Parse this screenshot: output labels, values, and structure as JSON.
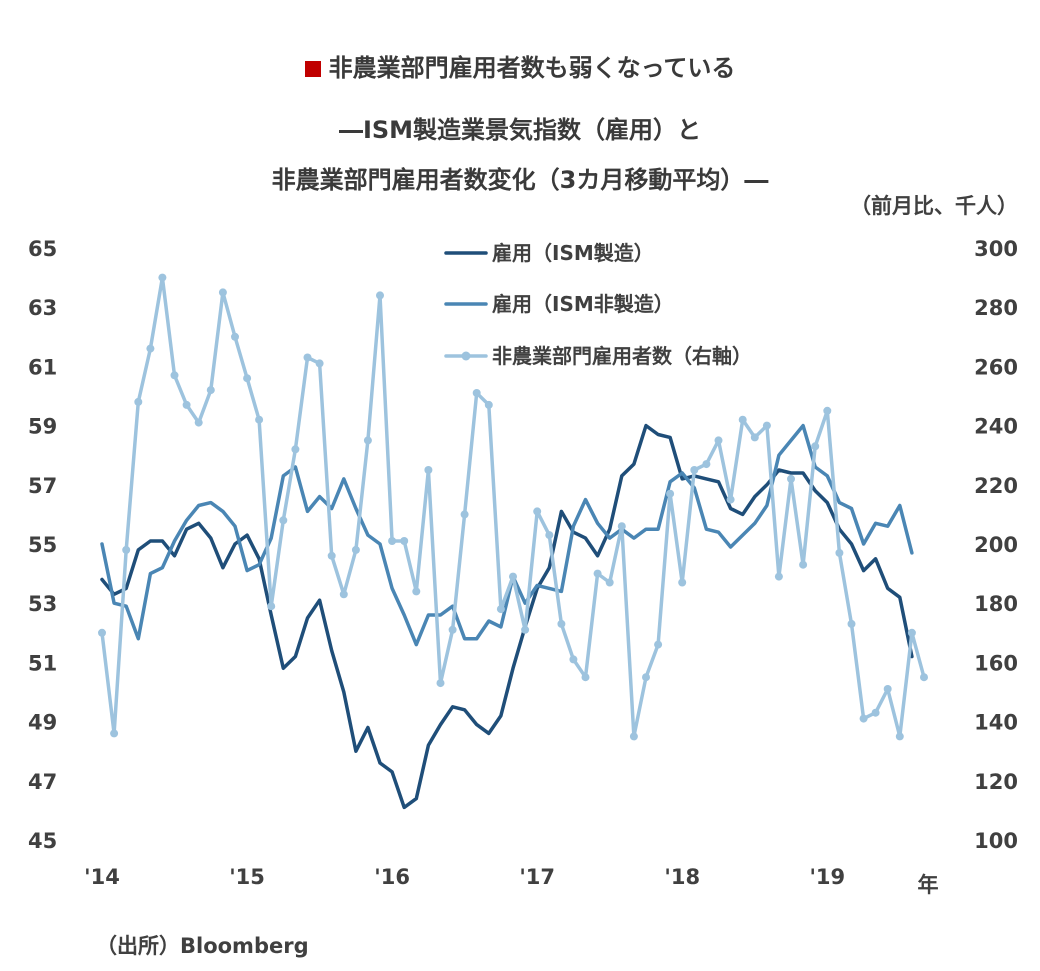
{
  "title": {
    "line1": "非農業部門雇用者数も弱くなっている",
    "line2": "―ISM製造業景気指数（雇用）と",
    "line3": "非農業部門雇用者数変化（3カ月移動平均）―"
  },
  "unit_right": "（前月比、千人）",
  "source": "（出所）Bloomberg",
  "colors": {
    "title_marker": "#c00000",
    "ism_manufacturing": "#1f4e79",
    "ism_nonmanufacturing": "#4a86b4",
    "nonfarm_payrolls": "#9dc3de"
  },
  "chart_data": {
    "type": "line",
    "x_unit": "年",
    "x_tick_labels": [
      "'14",
      "'15",
      "'16",
      "'17",
      "'18",
      "'19"
    ],
    "x_range": [
      "2014-01",
      "2019-09"
    ],
    "y_left": {
      "range": [
        45,
        65
      ],
      "ticks": [
        45,
        47,
        49,
        51,
        53,
        55,
        57,
        59,
        61,
        63,
        65
      ]
    },
    "y_right": {
      "range": [
        100,
        300
      ],
      "ticks": [
        100,
        120,
        140,
        160,
        180,
        200,
        220,
        240,
        260,
        280,
        300
      ]
    },
    "grid": false,
    "legend_position": "top-center",
    "series": [
      {
        "name": "雇用（ISM製造）",
        "axis": "left",
        "color": "#1f4e79",
        "markers": false,
        "start": "2014-01",
        "values": [
          53.8,
          53.3,
          53.5,
          54.8,
          55.1,
          55.1,
          54.6,
          55.5,
          55.7,
          55.2,
          54.2,
          55.0,
          55.3,
          54.5,
          52.6,
          50.8,
          51.2,
          52.5,
          53.1,
          51.4,
          50.0,
          48.0,
          48.8,
          47.6,
          47.3,
          46.1,
          46.4,
          48.2,
          48.9,
          49.5,
          49.4,
          48.9,
          48.6,
          49.2,
          50.8,
          52.2,
          53.5,
          54.2,
          56.1,
          55.4,
          55.2,
          54.6,
          55.5,
          57.3,
          57.7,
          59.0,
          58.7,
          58.6,
          57.2,
          57.3,
          57.2,
          57.1,
          56.2,
          56.0,
          56.6,
          57.0,
          57.5,
          57.4,
          57.4,
          56.8,
          56.4,
          55.5,
          55.0,
          54.1,
          54.5,
          53.5,
          53.2,
          51.2
        ]
      },
      {
        "name": "雇用（ISM非製造）",
        "axis": "left",
        "color": "#4a86b4",
        "markers": false,
        "start": "2014-01",
        "values": [
          55.0,
          53.0,
          52.9,
          51.8,
          54.0,
          54.2,
          55.1,
          55.8,
          56.3,
          56.4,
          56.1,
          55.6,
          54.1,
          54.3,
          55.2,
          57.3,
          57.6,
          56.1,
          56.6,
          56.2,
          57.2,
          56.2,
          55.3,
          55.0,
          53.5,
          52.6,
          51.6,
          52.6,
          52.6,
          52.9,
          51.8,
          51.8,
          52.4,
          52.2,
          53.9,
          53.0,
          53.6,
          53.5,
          53.4,
          55.6,
          56.5,
          55.7,
          55.2,
          55.5,
          55.2,
          55.5,
          55.5,
          57.1,
          57.4,
          56.9,
          55.5,
          55.4,
          54.9,
          55.3,
          55.7,
          56.3,
          58.0,
          58.5,
          59.0,
          57.6,
          57.3,
          56.4,
          56.2,
          55.0,
          55.7,
          55.6,
          56.3,
          54.7
        ]
      },
      {
        "name": "非農業部門雇用者数（右軸）",
        "axis": "right",
        "color": "#9dc3de",
        "markers": true,
        "start": "2014-01",
        "values": [
          170,
          136,
          198,
          248,
          266,
          290,
          257,
          247,
          241,
          252,
          285,
          270,
          256,
          242,
          179,
          208,
          232,
          263,
          261,
          196,
          183,
          198,
          235,
          284,
          201,
          201,
          184,
          225,
          153,
          171,
          210,
          251,
          247,
          178,
          189,
          171,
          211,
          203,
          173,
          161,
          155,
          190,
          187,
          206,
          135,
          155,
          166,
          217,
          187,
          225,
          227,
          235,
          215,
          242,
          236,
          240,
          189,
          222,
          193,
          233,
          245,
          197,
          173,
          141,
          143,
          151,
          135,
          170,
          155
        ]
      }
    ]
  }
}
